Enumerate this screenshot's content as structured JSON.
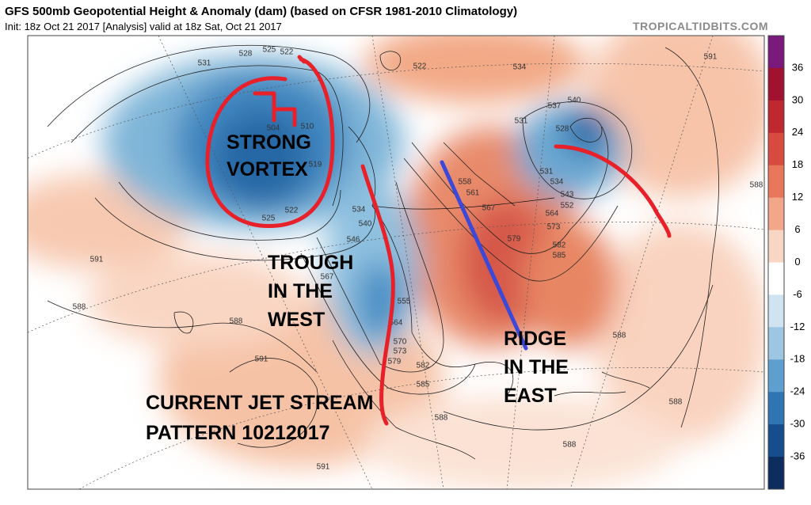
{
  "header": {
    "title": "GFS 500mb Geopotential Height & Anomaly (dam) (based on CFSR 1981-2010 Climatology)",
    "subtitle": "Init: 18z Oct 21 2017   [Analysis]   valid at 18z Sat, Oct 21 2017",
    "site": "TROPICALTIDBITS.COM"
  },
  "colorbar": {
    "labels": [
      36,
      30,
      24,
      18,
      12,
      6,
      0,
      -6,
      -12,
      -18,
      -24,
      -30,
      -36
    ]
  },
  "contour_labels": [
    "531",
    "528",
    "525",
    "522",
    "504",
    "510",
    "519",
    "522",
    "525",
    "534",
    "540",
    "546",
    "567",
    "555",
    "564",
    "570",
    "573",
    "579",
    "582",
    "585",
    "588",
    "591",
    "588",
    "588",
    "591",
    "591",
    "588",
    "588",
    "588",
    "588",
    "591",
    "534",
    "540",
    "537",
    "528",
    "531",
    "522",
    "531",
    "534",
    "543",
    "552",
    "564",
    "573",
    "582",
    "585",
    "579",
    "567",
    "558",
    "561"
  ],
  "annotations": {
    "vortex": [
      "STRONG",
      "VORTEX"
    ],
    "trough": [
      "TROUGH",
      "IN THE",
      "WEST"
    ],
    "ridge": [
      "RIDGE",
      "IN THE",
      "EAST"
    ],
    "jet": [
      "CURRENT JET STREAM",
      "PATTERN 10212017"
    ]
  }
}
